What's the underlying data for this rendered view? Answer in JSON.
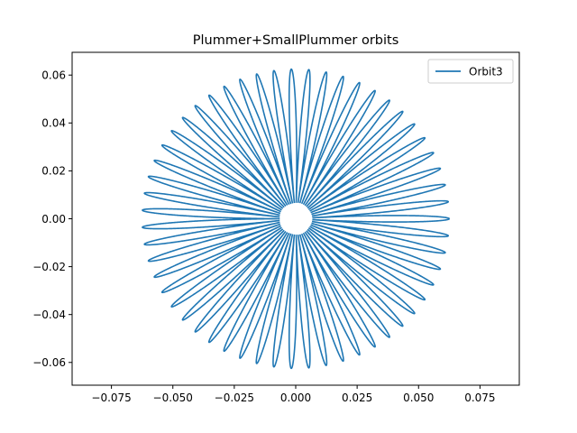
{
  "chart_data": {
    "type": "line",
    "title": "Plummer+SmallPlummer orbits",
    "xlabel": "",
    "ylabel": "",
    "xlim": [
      -0.091,
      0.091
    ],
    "ylim": [
      -0.0695,
      0.0695
    ],
    "xticks": [
      -0.075,
      -0.05,
      -0.025,
      0.0,
      0.025,
      0.05,
      0.075
    ],
    "xtick_labels": [
      "−0.075",
      "−0.050",
      "−0.025",
      "0.000",
      "0.025",
      "0.050",
      "0.075"
    ],
    "yticks": [
      -0.06,
      -0.04,
      -0.02,
      0.0,
      0.02,
      0.04,
      0.06
    ],
    "ytick_labels": [
      "−0.06",
      "−0.04",
      "−0.02",
      "0.00",
      "0.02",
      "0.04",
      "0.06"
    ],
    "grid": false,
    "legend_position": "upper right",
    "series": [
      {
        "name": "Orbit3",
        "color": "#1f77b4",
        "shape": "rosette",
        "r_max": 0.0625,
        "r_min": 0.0065,
        "lobes": 55
      }
    ]
  }
}
